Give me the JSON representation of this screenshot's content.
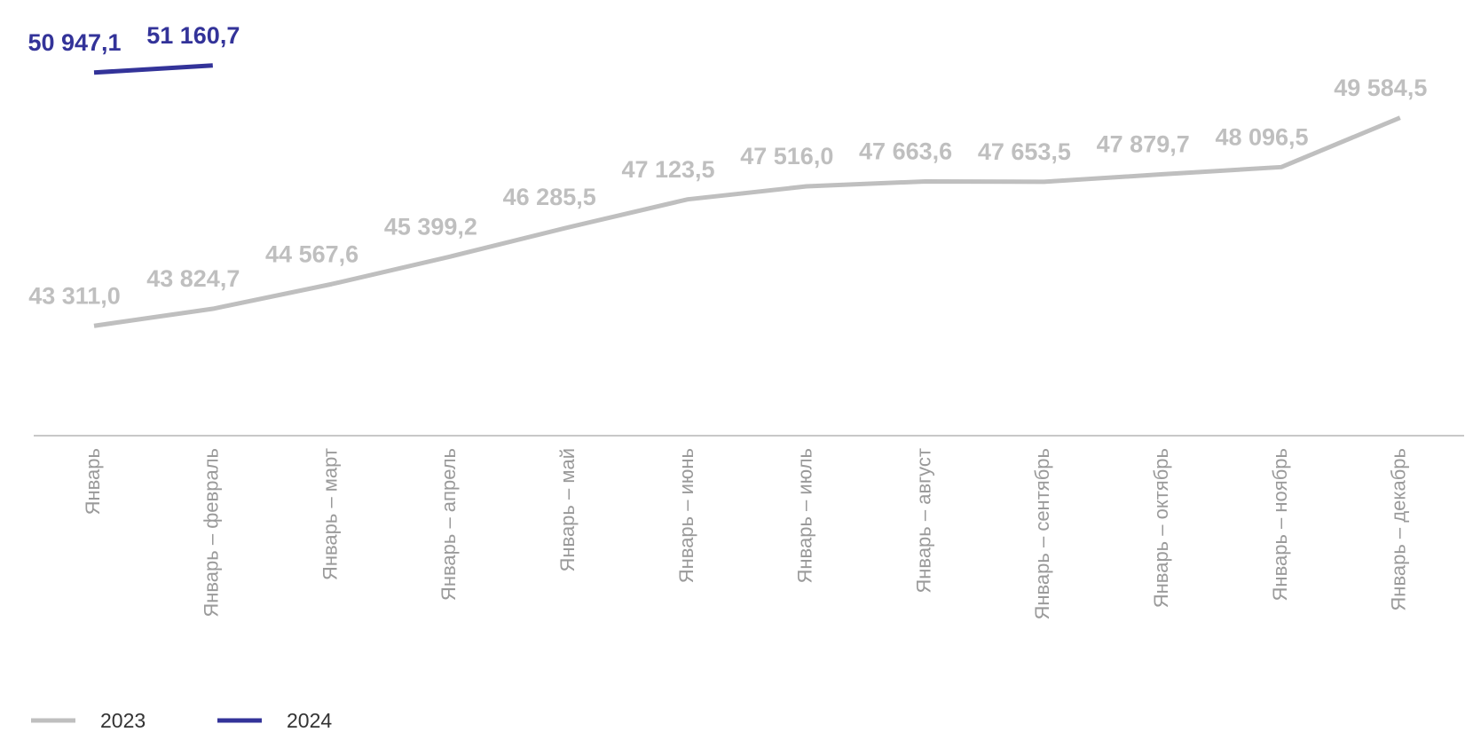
{
  "chart_data": {
    "type": "line",
    "categories": [
      "Январь",
      "Январь – февраль",
      "Январь – март",
      "Январь – апрель",
      "Январь – май",
      "Январь – июнь",
      "Январь – июль",
      "Январь – август",
      "Январь – сентябрь",
      "Январь – октябрь",
      "Январь – ноябрь",
      "Январь – декабрь"
    ],
    "series": [
      {
        "name": "2023",
        "color": "#bfbfbf",
        "values": [
          43311.0,
          43824.7,
          44567.6,
          45399.2,
          46285.5,
          47123.5,
          47516.0,
          47663.6,
          47653.5,
          47879.7,
          48096.5,
          49584.5
        ],
        "value_labels": [
          "43 311,0",
          "43 824,7",
          "44 567,6",
          "45 399,2",
          "46 285,5",
          "47 123,5",
          "47 516,0",
          "47 663,6",
          "47 653,5",
          "47 879,7",
          "48 096,5",
          "49 584,5"
        ]
      },
      {
        "name": "2024",
        "color": "#333399",
        "values": [
          50947.1,
          51160.7,
          null,
          null,
          null,
          null,
          null,
          null,
          null,
          null,
          null,
          null
        ],
        "value_labels": [
          "50 947,1",
          "51 160,7",
          null,
          null,
          null,
          null,
          null,
          null,
          null,
          null,
          null,
          null
        ]
      }
    ],
    "ylim": [
      40000,
      53000
    ],
    "legend": "bottom-left"
  }
}
